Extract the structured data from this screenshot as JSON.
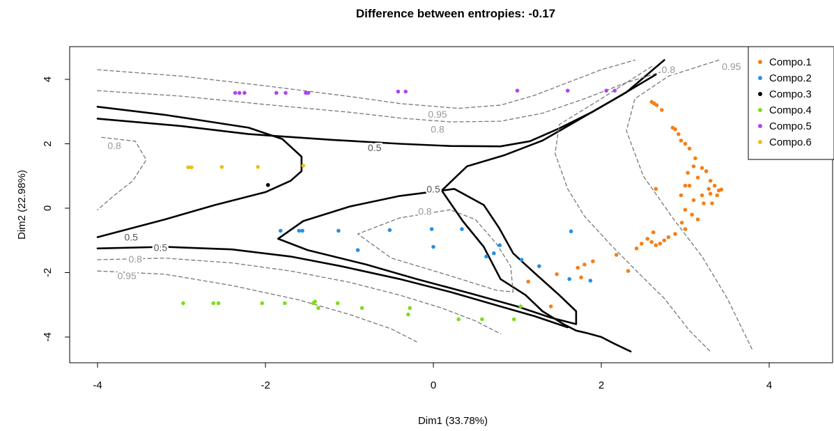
{
  "chart_data": {
    "type": "scatter",
    "title": "Difference between entropies: -0.17",
    "xlabel": "Dim1 (33.78%)",
    "ylabel": "Dim2 (22.98%)",
    "xlim": [
      -4.4,
      4.8
    ],
    "ylim": [
      -4.85,
      5.0
    ],
    "x_ticks": [
      -4,
      -2,
      0,
      2,
      4
    ],
    "x_tick_labels": [
      "-4",
      "-2",
      "0",
      "2",
      "4"
    ],
    "y_ticks": [
      -4,
      -2,
      0,
      2,
      4
    ],
    "y_tick_labels": [
      "-4",
      "-2",
      "0",
      "2",
      "4"
    ],
    "grid": false,
    "legend_position": "top-right",
    "series": [
      {
        "name": "Compo.1",
        "color": "#f57f17",
        "points": [
          [
            2.6,
            3.3
          ],
          [
            2.63,
            3.25
          ],
          [
            2.66,
            3.2
          ],
          [
            2.72,
            3.05
          ],
          [
            2.85,
            2.5
          ],
          [
            2.88,
            2.45
          ],
          [
            2.92,
            2.3
          ],
          [
            2.95,
            2.1
          ],
          [
            3.0,
            2.0
          ],
          [
            3.05,
            1.85
          ],
          [
            3.12,
            1.55
          ],
          [
            3.1,
            1.3
          ],
          [
            3.2,
            1.25
          ],
          [
            3.25,
            1.15
          ],
          [
            3.03,
            1.1
          ],
          [
            3.15,
            0.95
          ],
          [
            3.3,
            0.85
          ],
          [
            3.35,
            0.7
          ],
          [
            3.28,
            0.6
          ],
          [
            3.4,
            0.55
          ],
          [
            3.43,
            0.58
          ],
          [
            3.0,
            0.7
          ],
          [
            3.05,
            0.7
          ],
          [
            3.3,
            0.45
          ],
          [
            3.2,
            0.4
          ],
          [
            3.38,
            0.4
          ],
          [
            2.65,
            0.6
          ],
          [
            2.95,
            0.4
          ],
          [
            3.1,
            0.25
          ],
          [
            3.22,
            0.15
          ],
          [
            3.32,
            0.15
          ],
          [
            3.0,
            -0.05
          ],
          [
            3.08,
            -0.2
          ],
          [
            3.15,
            -0.35
          ],
          [
            2.96,
            -0.45
          ],
          [
            3.0,
            -0.65
          ],
          [
            2.88,
            -0.8
          ],
          [
            2.8,
            -0.9
          ],
          [
            2.75,
            -1.0
          ],
          [
            2.7,
            -1.1
          ],
          [
            2.65,
            -1.15
          ],
          [
            2.6,
            -1.05
          ],
          [
            2.55,
            -0.95
          ],
          [
            2.62,
            -0.75
          ],
          [
            2.48,
            -1.1
          ],
          [
            2.42,
            -1.25
          ],
          [
            2.18,
            -1.45
          ],
          [
            2.32,
            -1.95
          ],
          [
            1.9,
            -1.65
          ],
          [
            1.8,
            -1.75
          ],
          [
            1.72,
            -1.85
          ],
          [
            1.76,
            -2.15
          ],
          [
            1.47,
            -2.05
          ],
          [
            1.13,
            -2.28
          ],
          [
            1.4,
            -3.05
          ]
        ]
      },
      {
        "name": "Compo.2",
        "color": "#2a8fe0",
        "points": [
          [
            -1.82,
            -0.7
          ],
          [
            -1.6,
            -0.7
          ],
          [
            -1.56,
            -0.7
          ],
          [
            -1.13,
            -0.7
          ],
          [
            -0.9,
            -1.3
          ],
          [
            -0.52,
            -0.68
          ],
          [
            -0.02,
            -0.65
          ],
          [
            0.0,
            -1.2
          ],
          [
            0.34,
            -0.65
          ],
          [
            0.63,
            -1.5
          ],
          [
            0.72,
            -1.4
          ],
          [
            0.79,
            -1.15
          ],
          [
            1.05,
            -1.6
          ],
          [
            1.26,
            -1.8
          ],
          [
            1.64,
            -0.72
          ],
          [
            1.62,
            -2.2
          ],
          [
            1.87,
            -2.25
          ]
        ]
      },
      {
        "name": "Compo.3",
        "color": "#000000",
        "points": [
          [
            -1.97,
            0.72
          ]
        ]
      },
      {
        "name": "Compo.4",
        "color": "#7fdc1c",
        "points": [
          [
            -2.98,
            -2.95
          ],
          [
            -2.62,
            -2.95
          ],
          [
            -2.56,
            -2.95
          ],
          [
            -2.04,
            -2.95
          ],
          [
            -1.77,
            -2.95
          ],
          [
            -1.43,
            -2.95
          ],
          [
            -1.41,
            -2.9
          ],
          [
            -1.37,
            -3.1
          ],
          [
            -1.14,
            -2.95
          ],
          [
            -0.85,
            -3.1
          ],
          [
            -0.28,
            -3.1
          ],
          [
            -0.3,
            -3.3
          ],
          [
            0.3,
            -3.45
          ],
          [
            0.58,
            -3.45
          ],
          [
            0.96,
            -3.45
          ],
          [
            1.04,
            -3.05
          ]
        ]
      },
      {
        "name": "Compo.5",
        "color": "#b044f0",
        "points": [
          [
            -2.36,
            3.58
          ],
          [
            -2.31,
            3.58
          ],
          [
            -2.25,
            3.58
          ],
          [
            -1.87,
            3.58
          ],
          [
            -1.76,
            3.58
          ],
          [
            -1.52,
            3.58
          ],
          [
            -1.49,
            3.58
          ],
          [
            -0.42,
            3.62
          ],
          [
            -0.33,
            3.62
          ],
          [
            1.0,
            3.65
          ],
          [
            1.6,
            3.65
          ],
          [
            2.06,
            3.65
          ],
          [
            2.16,
            3.65
          ]
        ]
      },
      {
        "name": "Compo.6",
        "color": "#e8c01a",
        "points": [
          [
            -2.92,
            1.27
          ],
          [
            -2.88,
            1.27
          ],
          [
            -2.52,
            1.28
          ],
          [
            -2.09,
            1.28
          ],
          [
            -1.55,
            1.32
          ]
        ]
      }
    ],
    "contours": [
      {
        "level": "0.5",
        "color": "#000000",
        "dashed": false,
        "paths": [
          [
            [
              -4.0,
              3.15
            ],
            [
              -3.2,
              2.9
            ],
            [
              -2.2,
              2.5
            ],
            [
              -1.8,
              2.15
            ],
            [
              -1.57,
              1.6
            ],
            [
              -1.57,
              1.15
            ],
            [
              -1.7,
              0.85
            ],
            [
              -2.0,
              0.5
            ],
            [
              -2.6,
              0.1
            ],
            [
              -3.2,
              -0.35
            ],
            [
              -4.0,
              -0.9
            ]
          ],
          [
            [
              -4.0,
              2.78
            ],
            [
              -3.0,
              2.55
            ],
            [
              -2.2,
              2.3
            ],
            [
              -1.2,
              2.12
            ],
            [
              -0.4,
              2.0
            ],
            [
              0.2,
              1.93
            ],
            [
              0.8,
              1.92
            ],
            [
              1.15,
              2.08
            ],
            [
              1.5,
              2.48
            ],
            [
              1.9,
              3.0
            ],
            [
              2.3,
              3.6
            ],
            [
              2.75,
              4.6
            ]
          ],
          [
            [
              0.8,
              -2.2
            ],
            [
              1.1,
              -2.7
            ],
            [
              1.3,
              -3.2
            ],
            [
              1.55,
              -3.6
            ],
            [
              1.7,
              -3.8
            ],
            [
              1.83,
              -3.88
            ],
            [
              2.0,
              -4.0
            ],
            [
              2.15,
              -4.2
            ],
            [
              2.35,
              -4.45
            ]
          ],
          [
            [
              0.8,
              -2.2
            ],
            [
              0.6,
              -1.2
            ],
            [
              0.35,
              -0.4
            ],
            [
              0.1,
              0.55
            ],
            [
              0.4,
              1.3
            ],
            [
              0.85,
              1.65
            ],
            [
              1.3,
              2.1
            ],
            [
              1.7,
              2.7
            ],
            [
              2.2,
              3.45
            ],
            [
              2.65,
              4.15
            ]
          ],
          [
            [
              0.25,
              0.6
            ],
            [
              -0.4,
              0.38
            ],
            [
              -1.0,
              0.05
            ],
            [
              -1.55,
              -0.4
            ],
            [
              -1.85,
              -0.95
            ],
            [
              -1.5,
              -1.3
            ],
            [
              -0.8,
              -1.75
            ],
            [
              -0.2,
              -2.2
            ],
            [
              0.45,
              -2.65
            ],
            [
              1.0,
              -3.05
            ],
            [
              1.4,
              -3.4
            ],
            [
              1.7,
              -3.6
            ],
            [
              1.7,
              -3.2
            ],
            [
              1.5,
              -2.7
            ],
            [
              1.2,
              -2.0
            ],
            [
              0.95,
              -1.4
            ],
            [
              0.78,
              -0.6
            ],
            [
              0.6,
              0.1
            ],
            [
              0.25,
              0.6
            ]
          ],
          [
            [
              -4.0,
              -1.25
            ],
            [
              -3.2,
              -1.2
            ],
            [
              -2.4,
              -1.28
            ],
            [
              -1.7,
              -1.5
            ],
            [
              -1.1,
              -1.8
            ],
            [
              -0.4,
              -2.2
            ],
            [
              0.2,
              -2.6
            ],
            [
              0.8,
              -3.05
            ],
            [
              1.2,
              -3.35
            ],
            [
              1.6,
              -3.7
            ]
          ]
        ]
      },
      {
        "level": "0.8",
        "color": "#777777",
        "dashed": true,
        "paths": [
          [
            [
              -4.0,
              3.65
            ],
            [
              -3.0,
              3.48
            ],
            [
              -2.0,
              3.22
            ],
            [
              -1.0,
              2.98
            ],
            [
              -0.4,
              2.8
            ],
            [
              0.2,
              2.68
            ],
            [
              0.8,
              2.7
            ],
            [
              1.3,
              2.95
            ],
            [
              1.8,
              3.4
            ],
            [
              2.3,
              3.9
            ],
            [
              2.8,
              4.3
            ]
          ],
          [
            [
              -4.0,
              -1.6
            ],
            [
              -3.2,
              -1.55
            ],
            [
              -2.4,
              -1.7
            ],
            [
              -1.7,
              -1.95
            ],
            [
              -1.0,
              -2.3
            ],
            [
              -0.4,
              -2.7
            ],
            [
              0.1,
              -3.1
            ],
            [
              0.5,
              -3.5
            ],
            [
              0.8,
              -3.9
            ]
          ],
          [
            [
              -3.95,
              2.2
            ],
            [
              -3.55,
              2.08
            ],
            [
              -3.42,
              1.5
            ],
            [
              -3.58,
              0.85
            ],
            [
              -3.8,
              0.4
            ],
            [
              -4.0,
              -0.05
            ]
          ],
          [
            [
              0.2,
              -0.05
            ],
            [
              -0.4,
              -0.3
            ],
            [
              -0.9,
              -0.8
            ],
            [
              -0.5,
              -1.55
            ],
            [
              0.2,
              -2.1
            ],
            [
              0.75,
              -2.55
            ],
            [
              0.95,
              -2.6
            ],
            [
              0.92,
              -1.8
            ],
            [
              0.75,
              -1.1
            ],
            [
              0.5,
              -0.35
            ],
            [
              0.2,
              -0.05
            ]
          ],
          [
            [
              2.6,
              4.4
            ],
            [
              2.0,
              3.4
            ],
            [
              1.5,
              2.6
            ],
            [
              1.45,
              1.7
            ],
            [
              1.6,
              0.6
            ],
            [
              1.8,
              -0.25
            ],
            [
              2.1,
              -1.1
            ],
            [
              2.4,
              -1.9
            ],
            [
              2.75,
              -2.8
            ],
            [
              3.05,
              -3.8
            ],
            [
              3.3,
              -4.45
            ]
          ]
        ]
      },
      {
        "level": "0.95",
        "color": "#777777",
        "dashed": true,
        "paths": [
          [
            [
              -4.0,
              4.3
            ],
            [
              -3.0,
              4.1
            ],
            [
              -2.0,
              3.8
            ],
            [
              -1.0,
              3.47
            ],
            [
              -0.4,
              3.25
            ],
            [
              0.3,
              3.1
            ],
            [
              0.8,
              3.2
            ],
            [
              1.2,
              3.5
            ],
            [
              1.6,
              3.9
            ],
            [
              2.0,
              4.3
            ],
            [
              2.4,
              4.6
            ]
          ],
          [
            [
              -4.0,
              -1.95
            ],
            [
              -3.2,
              -2.05
            ],
            [
              -2.4,
              -2.4
            ],
            [
              -1.6,
              -2.85
            ],
            [
              -1.0,
              -3.3
            ],
            [
              -0.5,
              -3.75
            ],
            [
              -0.2,
              -4.15
            ]
          ],
          [
            [
              3.4,
              4.6
            ],
            [
              2.8,
              4.1
            ],
            [
              2.4,
              3.4
            ],
            [
              2.3,
              2.4
            ],
            [
              2.5,
              1.0
            ],
            [
              2.85,
              -0.3
            ],
            [
              3.2,
              -1.5
            ],
            [
              3.5,
              -2.8
            ],
            [
              3.8,
              -4.4
            ]
          ]
        ]
      }
    ],
    "contour_labels": [
      {
        "text": "0.5",
        "x": -3.6,
        "y": -0.9
      },
      {
        "text": "0.5",
        "x": -3.25,
        "y": -1.22
      },
      {
        "text": "0.5",
        "x": -0.7,
        "y": 1.88
      },
      {
        "text": "0.5",
        "x": 0.0,
        "y": 0.6
      },
      {
        "text": "0.8",
        "x": -3.55,
        "y": -1.58
      },
      {
        "text": "0.8",
        "x": -3.8,
        "y": 1.95
      },
      {
        "text": "0.8",
        "x": 0.05,
        "y": 2.45
      },
      {
        "text": "0.8",
        "x": -0.1,
        "y": -0.1
      },
      {
        "text": "0.8",
        "x": 2.8,
        "y": 4.3
      },
      {
        "text": "0.95",
        "x": -3.65,
        "y": -2.1
      },
      {
        "text": "0.95",
        "x": 0.05,
        "y": 2.92
      },
      {
        "text": "0.95",
        "x": 3.55,
        "y": 4.4
      }
    ]
  }
}
